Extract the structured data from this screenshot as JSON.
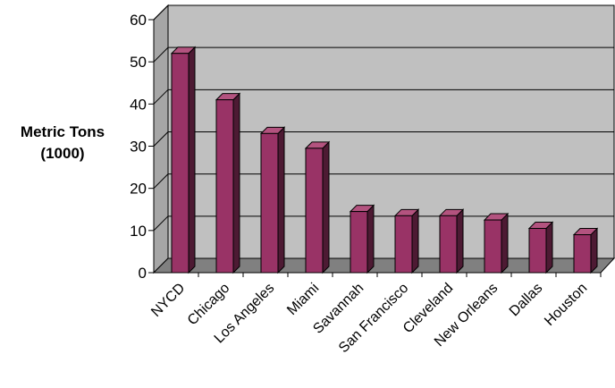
{
  "chart_data": {
    "type": "bar",
    "title": "",
    "xlabel": "",
    "ylabel": [
      "Metric Tons",
      "(1000)"
    ],
    "categories": [
      "NYCD",
      "Chicago",
      "Los Angeles",
      "Miami",
      "Savannah",
      "San Francisco",
      "Cleveland",
      "New Orleans",
      "Dallas",
      "Houston"
    ],
    "values": [
      52,
      41,
      33,
      29.5,
      14.5,
      13.5,
      13.5,
      12.5,
      10.5,
      9
    ],
    "ylim": [
      0,
      60
    ],
    "yticks": [
      "0",
      "10",
      "20",
      "30",
      "40",
      "50",
      "60"
    ],
    "grid": true,
    "three_d": true,
    "colors": {
      "bar_front": "#993366",
      "bar_side": "#4d1a33",
      "bar_top": "#b3537f",
      "back_wall": "#c0c0c0",
      "side_wall": "#a6a6a6",
      "floor": "#808080",
      "gridline": "#000000"
    }
  }
}
